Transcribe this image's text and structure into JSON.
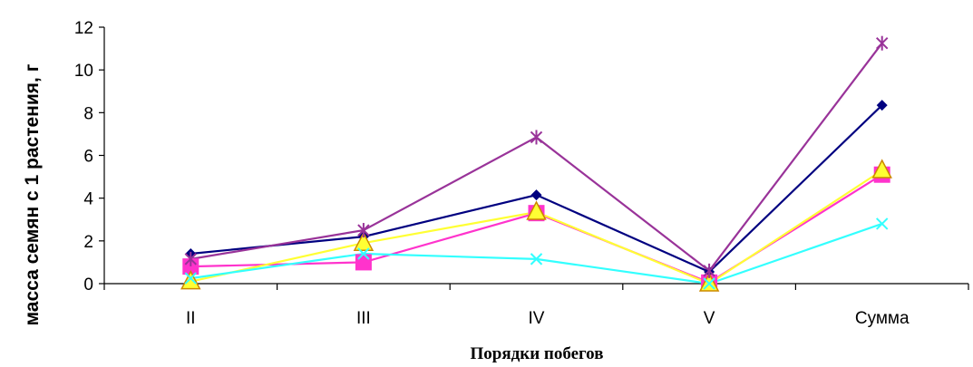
{
  "chart_data": {
    "type": "line",
    "title": "",
    "xlabel": "Порядки побегов",
    "ylabel": "масса семян с 1 растения, г",
    "categories": [
      "II",
      "III",
      "IV",
      "V",
      "Сумма"
    ],
    "ylim": [
      0,
      12
    ],
    "yticks": [
      0,
      2,
      4,
      6,
      8,
      10,
      12
    ],
    "grid": false,
    "legend": "none",
    "series": [
      {
        "color": "#000080",
        "marker": "diamond",
        "values": [
          1.4,
          2.2,
          4.15,
          0.55,
          8.35
        ]
      },
      {
        "color": "#ff33cc",
        "marker": "square",
        "values": [
          0.8,
          1.0,
          3.3,
          0.05,
          5.1
        ]
      },
      {
        "color": "#ffff33",
        "marker": "triangle",
        "values": [
          0.1,
          1.9,
          3.35,
          0.0,
          5.3
        ]
      },
      {
        "color": "#33ffff",
        "marker": "x",
        "values": [
          0.25,
          1.4,
          1.15,
          0.0,
          2.8
        ]
      },
      {
        "color": "#993399",
        "marker": "star",
        "values": [
          1.15,
          2.5,
          6.85,
          0.6,
          11.25
        ]
      }
    ]
  }
}
